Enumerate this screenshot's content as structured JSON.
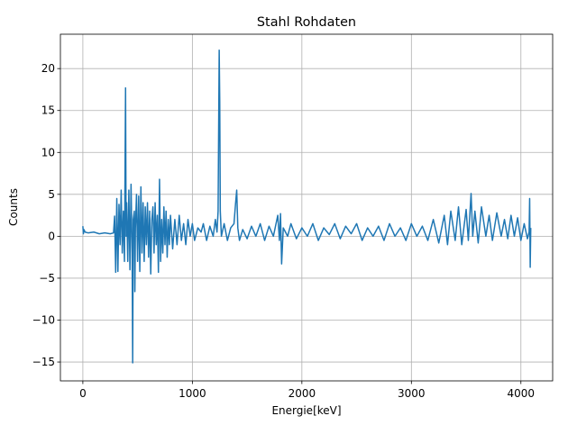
{
  "chart_data": {
    "type": "line",
    "title": "Stahl Rohdaten",
    "xlabel": "Energie[keV]",
    "ylabel": "Counts",
    "color": "#1f77b4",
    "grid": true,
    "xlim": [
      -205,
      4290
    ],
    "ylim": [
      -17.25,
      24.1
    ],
    "xticks": [
      0,
      1000,
      2000,
      3000,
      4000
    ],
    "yticks": [
      {
        "value": -15,
        "label": "−15"
      },
      {
        "value": -10,
        "label": "−10"
      },
      {
        "value": -5,
        "label": "−5"
      },
      0,
      5,
      10,
      15,
      20
    ],
    "x": [
      0,
      5,
      10,
      20,
      50,
      100,
      150,
      200,
      250,
      280,
      290,
      300,
      310,
      320,
      330,
      340,
      350,
      360,
      370,
      380,
      390,
      395,
      400,
      410,
      420,
      430,
      440,
      450,
      455,
      460,
      470,
      475,
      480,
      490,
      500,
      510,
      520,
      530,
      540,
      550,
      560,
      570,
      580,
      590,
      600,
      610,
      620,
      630,
      640,
      650,
      660,
      670,
      680,
      690,
      700,
      710,
      720,
      730,
      740,
      750,
      760,
      770,
      780,
      790,
      800,
      820,
      840,
      860,
      880,
      900,
      920,
      940,
      960,
      980,
      1000,
      1020,
      1050,
      1080,
      1100,
      1130,
      1160,
      1190,
      1210,
      1225,
      1235,
      1245,
      1250,
      1255,
      1265,
      1290,
      1320,
      1350,
      1380,
      1395,
      1405,
      1415,
      1430,
      1460,
      1500,
      1540,
      1580,
      1620,
      1660,
      1700,
      1740,
      1780,
      1795,
      1805,
      1815,
      1830,
      1870,
      1900,
      1950,
      2000,
      2050,
      2100,
      2150,
      2200,
      2250,
      2300,
      2350,
      2400,
      2450,
      2500,
      2550,
      2600,
      2650,
      2700,
      2750,
      2800,
      2850,
      2900,
      2950,
      3000,
      3050,
      3100,
      3150,
      3200,
      3250,
      3300,
      3330,
      3360,
      3400,
      3430,
      3460,
      3500,
      3520,
      3545,
      3560,
      3580,
      3610,
      3640,
      3680,
      3710,
      3740,
      3780,
      3820,
      3850,
      3880,
      3910,
      3940,
      3970,
      4000,
      4030,
      4060,
      4075,
      4080,
      4085,
      4090
    ],
    "values": [
      1.2,
      0.3,
      0.8,
      0.5,
      0.4,
      0.5,
      0.3,
      0.4,
      0.3,
      0.4,
      2.4,
      -4.3,
      4.5,
      -4.2,
      3.8,
      -1,
      5.5,
      -2,
      3,
      -3,
      17.7,
      0,
      4,
      -3,
      5.5,
      -4,
      6.2,
      -2,
      -15.1,
      2,
      3,
      -6.6,
      1,
      5,
      -3,
      4.8,
      -4.2,
      5.9,
      -2,
      4,
      -3,
      3.5,
      -1,
      4,
      -2.5,
      3,
      -4.5,
      2,
      3.5,
      -2,
      4,
      -1,
      2.5,
      -4.3,
      6.8,
      -3,
      2,
      -2,
      3.5,
      -1,
      3,
      -2.5,
      2,
      -1,
      2.5,
      -1.5,
      2,
      -1,
      2.5,
      -0.5,
      1.5,
      -1,
      2,
      0,
      1.5,
      -0.5,
      1,
      0.5,
      1.5,
      -0.5,
      1.2,
      0,
      2,
      0.5,
      3,
      22.2,
      16,
      3,
      0,
      1.5,
      -0.5,
      1,
      1.5,
      4,
      5.5,
      1,
      -0.5,
      0.8,
      -0.3,
      1.2,
      0,
      1.5,
      -0.5,
      1.2,
      0,
      2.5,
      -0.5,
      2.7,
      -3.3,
      1,
      0,
      1.5,
      -0.3,
      1,
      0,
      1.5,
      -0.5,
      1,
      0.2,
      1.5,
      -0.3,
      1.2,
      0.3,
      1.5,
      -0.5,
      1,
      0,
      1.2,
      -0.5,
      1.5,
      0,
      1,
      -0.5,
      1.5,
      0,
      1.2,
      -0.5,
      2,
      -0.8,
      2.5,
      -1,
      3,
      -0.5,
      3.5,
      -1,
      3.2,
      -0.5,
      5.1,
      0,
      3,
      -0.8,
      3.5,
      0,
      2.5,
      -0.5,
      2.8,
      0,
      2,
      -0.3,
      2.5,
      0,
      2.2,
      -0.5,
      1.5,
      -0.3,
      0.5,
      4.5,
      -3.7,
      1
    ]
  }
}
